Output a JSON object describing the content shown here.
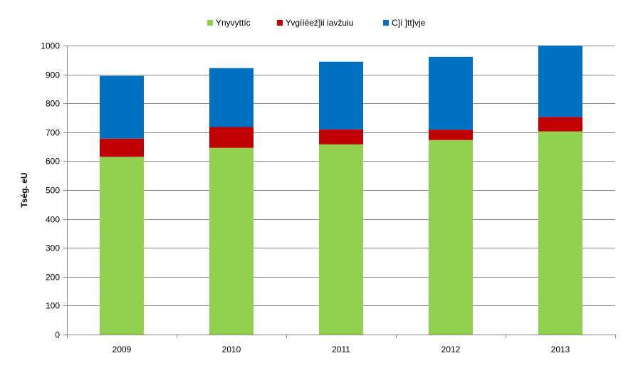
{
  "chart_data": {
    "type": "bar",
    "stacked": true,
    "title": "",
    "xlabel": "",
    "ylabel": "Tség. eU",
    "ylim": [
      0,
      1000
    ],
    "ytick_step": 100,
    "grid": true,
    "legend_position": "top",
    "categories": [
      "2009",
      "2010",
      "2011",
      "2012",
      "2013"
    ],
    "series": [
      {
        "name": "Ynyvyttíc",
        "color": "#92d050",
        "values": [
          615,
          646,
          658,
          673,
          703
        ]
      },
      {
        "name": "Yvgííéež]ii iavžuiu",
        "color": "#c00000",
        "values": [
          63,
          72,
          52,
          36,
          50
        ]
      },
      {
        "name": "C]í  ]tt]vje",
        "color": "#0070c0",
        "values": [
          217,
          204,
          234,
          252,
          247
        ]
      }
    ]
  }
}
